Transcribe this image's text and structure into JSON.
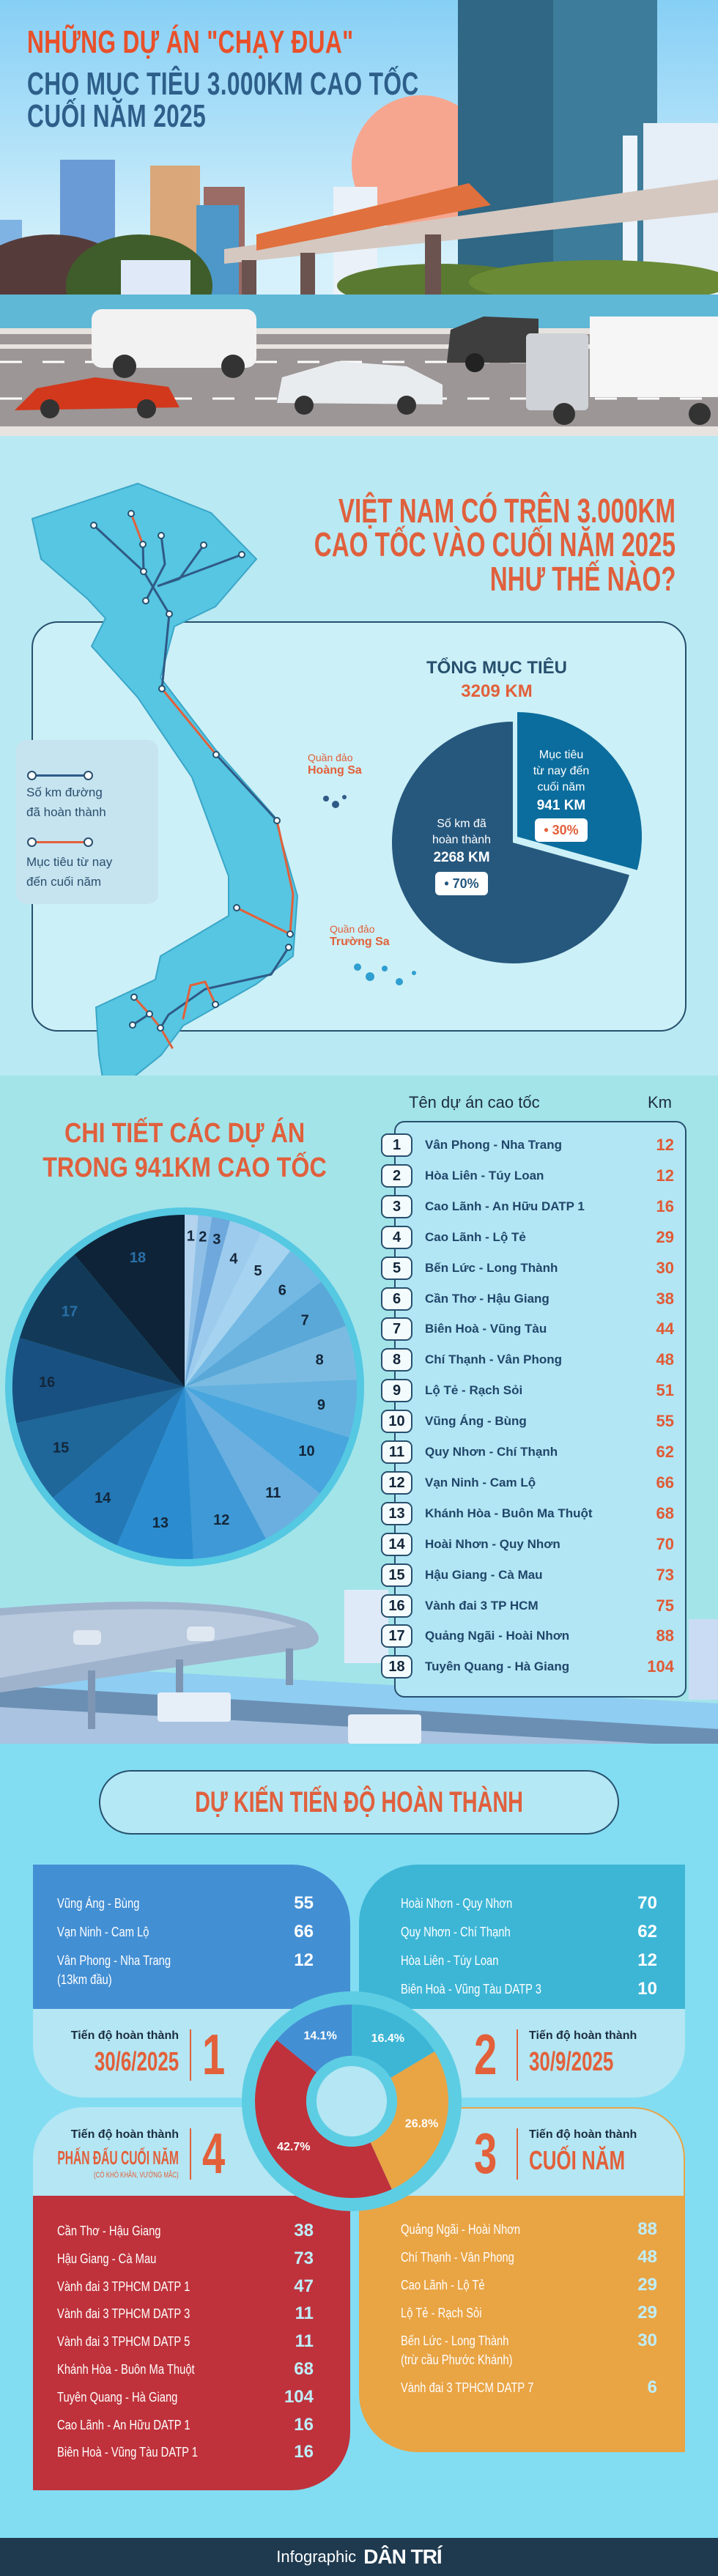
{
  "hero": {
    "title_line1": "NHỮNG DỰ ÁN \"CHẠY ĐUA\"",
    "title_line2": "CHO MỤC TIÊU 3.000KM CAO TỐC",
    "title_line3": "CUỐI NĂM 2025"
  },
  "overview": {
    "heading": [
      "VIỆT NAM CÓ TRÊN 3.000KM",
      "CAO TỐC VÀO CUỐI NĂM 2025",
      "NHƯ THẾ NÀO?"
    ],
    "total_label": "TỔNG MỤC TIÊU",
    "total_value": "3209 KM",
    "legend": {
      "completed": [
        "Số km đường",
        "đã hoàn thành"
      ],
      "target": [
        "Mục tiêu từ nay",
        "đến cuối năm"
      ]
    },
    "islands": {
      "hoang_sa_prefix": "Quần đảo",
      "hoang_sa": "Hoàng Sa",
      "truong_sa_prefix": "Quần đảo",
      "truong_sa": "Trường Sa"
    },
    "target_slice": {
      "lines": [
        "Mục tiêu",
        "từ nay đến",
        "cuối năm"
      ],
      "value": "941 KM",
      "pct": "• 30%"
    },
    "completed_slice": {
      "lines": [
        "Số km đã",
        "hoàn thành"
      ],
      "value": "2268 KM",
      "pct": "• 70%"
    },
    "colors": {
      "completed": "#26587e",
      "target": "#0b6d9d",
      "completed_route": "#2f5a86",
      "target_route": "#e2603a"
    }
  },
  "projects": {
    "heading": [
      "CHI TIẾT CÁC DỰ ÁN",
      "TRONG 941KM CAO TỐC"
    ],
    "col_name": "Tên dự án cao tốc",
    "col_km": "Km",
    "rows": [
      {
        "no": "1",
        "name": "Vân Phong - Nha Trang",
        "km": "12"
      },
      {
        "no": "2",
        "name": "Hòa Liên - Túy Loan",
        "km": "12"
      },
      {
        "no": "3",
        "name": "Cao Lãnh - An Hữu DATP 1",
        "km": "16"
      },
      {
        "no": "4",
        "name": "Cao Lãnh - Lộ Tẻ",
        "km": "29"
      },
      {
        "no": "5",
        "name": "Bến Lức - Long Thành",
        "km": "30"
      },
      {
        "no": "6",
        "name": "Cần Thơ - Hậu Giang",
        "km": "38"
      },
      {
        "no": "7",
        "name": "Biên Hoà - Vũng Tàu",
        "km": "44"
      },
      {
        "no": "8",
        "name": "Chí Thạnh - Vân Phong",
        "km": "48"
      },
      {
        "no": "9",
        "name": "Lộ Tẻ - Rạch Sỏi",
        "km": "51"
      },
      {
        "no": "10",
        "name": "Vũng Áng - Bùng",
        "km": "55"
      },
      {
        "no": "11",
        "name": "Quy Nhơn - Chí Thạnh",
        "km": "62"
      },
      {
        "no": "12",
        "name": "Vạn Ninh - Cam Lộ",
        "km": "66"
      },
      {
        "no": "13",
        "name": "Khánh Hòa - Buôn Ma Thuột",
        "km": "68"
      },
      {
        "no": "14",
        "name": "Hoài Nhơn - Quy Nhơn",
        "km": "70"
      },
      {
        "no": "15",
        "name": "Hậu Giang - Cà Mau",
        "km": "73"
      },
      {
        "no": "16",
        "name": "Vành đai 3 TP HCM",
        "km": "75"
      },
      {
        "no": "17",
        "name": "Quảng Ngãi - Hoài Nhơn",
        "km": "88"
      },
      {
        "no": "18",
        "name": "Tuyên Quang - Hà Giang",
        "km": "104"
      }
    ]
  },
  "schedule": {
    "heading": "DỰ KIẾN TIẾN ĐỘ HOÀN THÀNH",
    "groups": [
      {
        "num": "1",
        "head": "Tiến độ hoàn thành",
        "date": "30/6/2025",
        "color": "#438fd4",
        "items": [
          {
            "name": "Vũng Áng - Bùng",
            "km": "55"
          },
          {
            "name": "Vạn Ninh - Cam Lộ",
            "km": "66"
          },
          {
            "name": "Vân Phong - Nha Trang",
            "sub": "(13km đầu)",
            "km": "12"
          }
        ]
      },
      {
        "num": "2",
        "head": "Tiến độ hoàn thành",
        "date": "30/9/2025",
        "color": "#3db6d6",
        "items": [
          {
            "name": "Hoài Nhơn - Quy Nhơn",
            "km": "70"
          },
          {
            "name": "Quy Nhơn - Chí Thạnh",
            "km": "62"
          },
          {
            "name": "Hòa Liên - Túy Loan",
            "km": "12"
          },
          {
            "name": "Biên Hoà - Vũng Tàu DATP 3",
            "km": "10"
          }
        ]
      },
      {
        "num": "3",
        "head": "Tiến độ hoàn thành",
        "date": "CUỐI NĂM",
        "color": "#e9a444",
        "items": [
          {
            "name": "Quảng Ngãi - Hoài Nhơn",
            "km": "88"
          },
          {
            "name": "Chí Thạnh - Vân Phong",
            "km": "48"
          },
          {
            "name": "Cao Lãnh - Lộ Tẻ",
            "km": "29"
          },
          {
            "name": "Lộ Tẻ - Rạch Sỏi",
            "km": "29"
          },
          {
            "name": "Bến Lức - Long Thành",
            "sub": "(trừ cầu Phước Khánh)",
            "km": "30"
          },
          {
            "name": "Vành đai 3 TPHCM DATP 7",
            "km": "6"
          }
        ]
      },
      {
        "num": "4",
        "head": "Tiến độ hoàn thành",
        "date": "PHẤN ĐẤU CUỐI NĂM",
        "note": "(CÓ KHÓ KHĂN, VƯỚNG MẮC)",
        "color": "#bf323b",
        "items": [
          {
            "name": "Cần Thơ - Hậu Giang",
            "km": "38"
          },
          {
            "name": "Hậu Giang - Cà Mau",
            "km": "73"
          },
          {
            "name": "Vành đai 3 TPHCM DATP 1",
            "km": "47"
          },
          {
            "name": "Vành đai 3 TPHCM DATP 3",
            "km": "11"
          },
          {
            "name": "Vành đai 3 TPHCM DATP 5",
            "km": "11"
          },
          {
            "name": "Khánh Hòa - Buôn Ma Thuột",
            "km": "68"
          },
          {
            "name": "Tuyên Quang - Hà Giang",
            "km": "104"
          },
          {
            "name": "Cao Lãnh - An Hữu DATP 1",
            "km": "16"
          },
          {
            "name": "Biên Hoà - Vũng Tàu DATP 1",
            "km": "16"
          }
        ]
      }
    ]
  },
  "footer": {
    "prefix": "Infographic",
    "logo": "DÂN TRÍ"
  },
  "chart_data": [
    {
      "type": "pie",
      "title": "TỔNG MỤC TIÊU 3209 KM",
      "categories": [
        "Số km đã hoàn thành",
        "Mục tiêu từ nay đến cuối năm"
      ],
      "values": [
        2268,
        941
      ],
      "percent": [
        70,
        30
      ],
      "colors": [
        "#26587e",
        "#0b6d9d"
      ]
    },
    {
      "type": "pie",
      "title": "CHI TIẾT CÁC DỰ ÁN TRONG 941KM CAO TỐC",
      "categories": [
        "1",
        "2",
        "3",
        "4",
        "5",
        "6",
        "7",
        "8",
        "9",
        "10",
        "11",
        "12",
        "13",
        "14",
        "15",
        "16",
        "17",
        "18"
      ],
      "values": [
        12,
        12,
        16,
        29,
        30,
        38,
        44,
        48,
        51,
        55,
        62,
        66,
        68,
        70,
        73,
        75,
        88,
        104
      ],
      "colors": [
        "#b3d3ee",
        "#8fbfe7",
        "#6ea8dc",
        "#9dcbee",
        "#a6d3ef",
        "#74b8e4",
        "#5aa8d8",
        "#7cbbe1",
        "#64b1df",
        "#48a5dd",
        "#6aafe0",
        "#3f99d6",
        "#2b8dcf",
        "#2478b6",
        "#1f6699",
        "#185181",
        "#123a58",
        "#0e2338"
      ]
    },
    {
      "type": "pie",
      "title": "DỰ KIẾN TIẾN ĐỘ HOÀN THÀNH",
      "donut": true,
      "categories": [
        "1",
        "2",
        "3",
        "4"
      ],
      "values": [
        14.1,
        16.4,
        26.8,
        42.7
      ],
      "labels": [
        "14.1%",
        "16.4%",
        "26.8%",
        "42.7%"
      ],
      "colors": [
        "#438fd4",
        "#3db6d6",
        "#e9a444",
        "#bf323b"
      ]
    }
  ]
}
